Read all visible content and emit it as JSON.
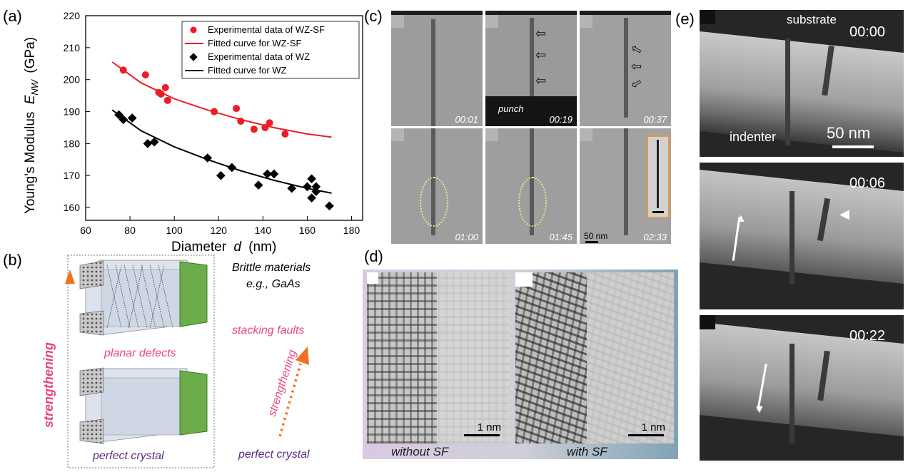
{
  "panel_labels": {
    "a": "(a)",
    "b": "(b)",
    "c": "(c)",
    "d": "(d)",
    "e": "(e)"
  },
  "chart_data": {
    "type": "scatter",
    "xlabel": "Diameter",
    "xlabel_var": "d",
    "xlabel_unit": "(nm)",
    "ylabel": "Young's Modulus",
    "ylabel_var": "E",
    "ylabel_sub": "NW",
    "ylabel_unit": "(GPa)",
    "xlim": [
      60,
      185
    ],
    "ylim": [
      156,
      220
    ],
    "xticks": [
      "60",
      "80",
      "100",
      "120",
      "140",
      "160",
      "180"
    ],
    "yticks": [
      "160",
      "170",
      "180",
      "190",
      "200",
      "210",
      "220"
    ],
    "legend": [
      "Experimental data of WZ-SF",
      "Fitted curve for WZ-SF",
      "Experimental data of WZ",
      "Fitted curve for WZ"
    ],
    "series": [
      {
        "name": "Experimental data of WZ-SF",
        "color": "#ee1c25",
        "marker": "circle",
        "points": [
          [
            77,
            203
          ],
          [
            87,
            201.5
          ],
          [
            93,
            196
          ],
          [
            94,
            195.5
          ],
          [
            96,
            197.5
          ],
          [
            97,
            193.5
          ],
          [
            118,
            190
          ],
          [
            128,
            191
          ],
          [
            130,
            187
          ],
          [
            136,
            184.5
          ],
          [
            141,
            185
          ],
          [
            143,
            186.5
          ],
          [
            150,
            183
          ]
        ]
      },
      {
        "name": "Experimental data of WZ",
        "color": "#000000",
        "marker": "diamond",
        "points": [
          [
            75,
            189
          ],
          [
            77,
            187.5
          ],
          [
            81,
            188
          ],
          [
            88,
            180
          ],
          [
            91,
            180.5
          ],
          [
            115,
            175.5
          ],
          [
            121,
            170
          ],
          [
            126,
            172.5
          ],
          [
            138,
            167
          ],
          [
            142,
            170.5
          ],
          [
            145,
            170.5
          ],
          [
            153,
            166
          ],
          [
            160,
            166.5
          ],
          [
            162,
            169
          ],
          [
            162,
            163
          ],
          [
            164,
            166.5
          ],
          [
            164,
            165
          ],
          [
            170,
            160.5
          ]
        ]
      }
    ],
    "curves": [
      {
        "name": "Fitted curve for WZ-SF",
        "color": "#ee1c25",
        "points": [
          [
            72,
            205.5
          ],
          [
            85,
            199
          ],
          [
            100,
            194
          ],
          [
            115,
            190.5
          ],
          [
            130,
            187.5
          ],
          [
            145,
            185
          ],
          [
            160,
            183
          ],
          [
            171,
            182
          ]
        ]
      },
      {
        "name": "Fitted curve for WZ",
        "color": "#000000",
        "points": [
          [
            72,
            190.5
          ],
          [
            85,
            184
          ],
          [
            100,
            179
          ],
          [
            115,
            175
          ],
          [
            130,
            171.5
          ],
          [
            145,
            168.5
          ],
          [
            160,
            166
          ],
          [
            171,
            164.5
          ]
        ]
      }
    ]
  },
  "panel_b": {
    "top_label": "planar defects",
    "bottom_label": "perfect crystal",
    "arrow_label": "strengthening",
    "title_line1": "Brittle materials",
    "title_line2": "e.g., GaAs",
    "right_top": "stacking faults",
    "right_arrow": "strengthening",
    "right_bottom": "perfect crystal"
  },
  "panel_c": {
    "timestamps": [
      "00:01",
      "00:19",
      "00:37",
      "01:00",
      "01:45",
      "02:33"
    ],
    "punch_label": "punch",
    "scale_label": "50 nm"
  },
  "panel_d": {
    "left_label": "without SF",
    "right_label": "with SF",
    "scale_left": "1 nm",
    "scale_right": "1 nm"
  },
  "panel_e": {
    "substrate_label": "substrate",
    "indenter_label": "indenter",
    "scale_label": "50 nm",
    "timestamps": [
      "00:00",
      "00:06",
      "00:22"
    ]
  }
}
